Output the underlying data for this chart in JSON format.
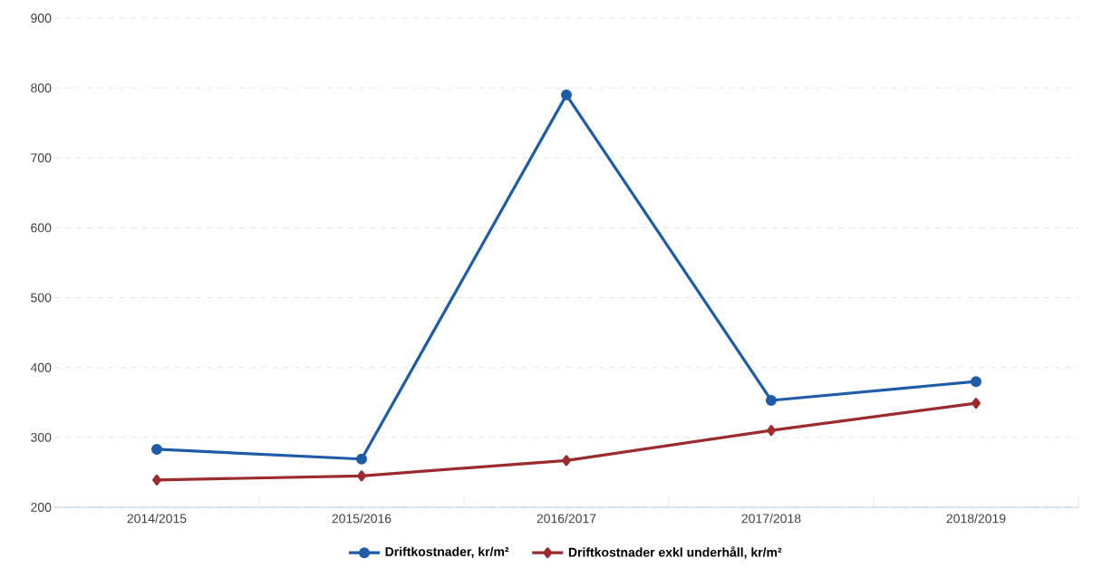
{
  "chart_data": {
    "type": "line",
    "categories": [
      "2014/2015",
      "2015/2016",
      "2016/2017",
      "2017/2018",
      "2018/2019"
    ],
    "series": [
      {
        "name": "Driftkostnader, kr/m²",
        "color": "#1f5ca8",
        "marker": "circle",
        "values": [
          283,
          269,
          790,
          353,
          380
        ]
      },
      {
        "name": "Driftkostnader exkl underhåll, kr/m²",
        "color": "#9b2b2e",
        "marker": "diamond",
        "values": [
          239,
          245,
          267,
          310,
          349
        ]
      }
    ],
    "ylim": [
      200,
      900
    ],
    "yticks": [
      200,
      300,
      400,
      500,
      600,
      700,
      800,
      900
    ],
    "grid": "y",
    "legend": "bottom",
    "line_style": "solid"
  }
}
